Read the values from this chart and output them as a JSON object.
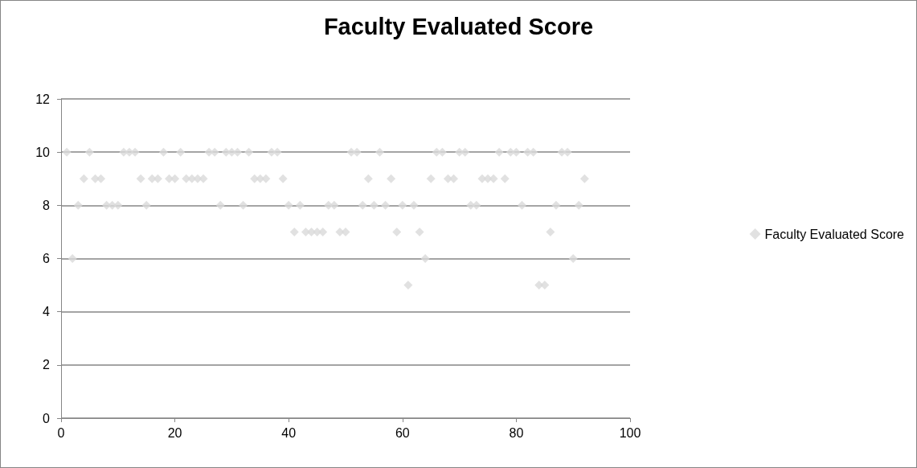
{
  "chart_data": {
    "type": "scatter",
    "title": "Faculty Evaluated Score",
    "x": [
      1,
      2,
      3,
      4,
      5,
      6,
      7,
      8,
      9,
      10,
      11,
      12,
      13,
      14,
      15,
      16,
      17,
      18,
      19,
      20,
      21,
      22,
      23,
      24,
      25,
      26,
      27,
      28,
      29,
      30,
      31,
      32,
      33,
      34,
      35,
      36,
      37,
      38,
      39,
      40,
      41,
      42,
      43,
      44,
      45,
      46,
      47,
      48,
      49,
      50,
      51,
      52,
      53,
      54,
      55,
      56,
      57,
      58,
      59,
      60,
      61,
      62,
      63,
      64,
      65,
      66,
      67,
      68,
      69,
      70,
      71,
      72,
      73,
      74,
      75,
      76,
      77,
      78,
      79,
      80,
      81,
      82,
      83,
      84,
      85,
      86,
      87,
      88,
      89,
      90,
      91,
      92
    ],
    "series": [
      {
        "name": "Faculty Evaluated Score",
        "color": "#d9d9d9",
        "values": [
          10,
          6,
          8,
          9,
          10,
          9,
          9,
          8,
          8,
          8,
          10,
          10,
          10,
          9,
          8,
          9,
          9,
          10,
          9,
          9,
          10,
          9,
          9,
          9,
          9,
          10,
          10,
          8,
          10,
          10,
          10,
          8,
          10,
          9,
          9,
          9,
          10,
          10,
          9,
          8,
          7,
          8,
          7,
          7,
          7,
          7,
          8,
          8,
          7,
          7,
          10,
          10,
          8,
          9,
          8,
          10,
          8,
          9,
          7,
          8,
          5,
          8,
          7,
          6,
          9,
          10,
          10,
          9,
          9,
          10,
          10,
          8,
          8,
          9,
          9,
          9,
          10,
          9,
          10,
          10,
          8,
          10,
          10,
          5,
          5,
          7,
          8,
          10,
          10,
          6,
          8,
          9
        ]
      }
    ],
    "xlim": [
      0,
      100
    ],
    "xticks": [
      0,
      20,
      40,
      60,
      80,
      100
    ],
    "ylim": [
      0,
      12
    ],
    "yticks": [
      0,
      2,
      4,
      6,
      8,
      10,
      12
    ],
    "grid": "y",
    "legend": "right",
    "marker": "diamond"
  }
}
